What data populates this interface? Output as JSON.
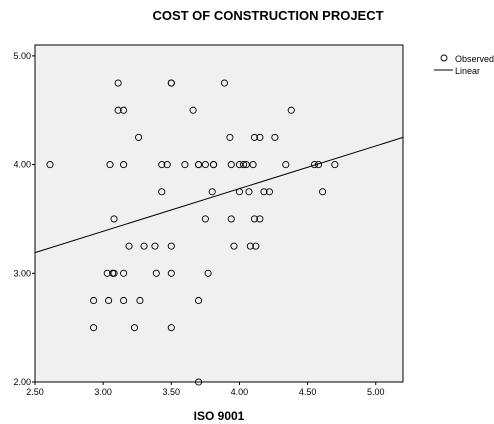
{
  "chart_data": {
    "type": "scatter",
    "title": "COST OF CONSTRUCTION PROJECT",
    "xlabel": "ISO 9001",
    "ylabel": "",
    "xlim": [
      2.5,
      5.2
    ],
    "ylim": [
      2.0,
      5.1
    ],
    "x_ticks": [
      "2.50",
      "3.00",
      "3.50",
      "4.00",
      "4.50",
      "5.00"
    ],
    "y_ticks": [
      "2.00",
      "3.00",
      "4.00",
      "5.00"
    ],
    "grid": false,
    "legend_position": "top-right",
    "legend": {
      "observed_label": "Observed",
      "linear_label": "Linear"
    },
    "series": [
      {
        "name": "Observed",
        "kind": "points",
        "points": [
          [
            2.61,
            4.0
          ],
          [
            2.93,
            2.75
          ],
          [
            2.93,
            2.5
          ],
          [
            3.03,
            3.0
          ],
          [
            3.04,
            2.75
          ],
          [
            3.05,
            4.0
          ],
          [
            3.07,
            3.0
          ],
          [
            3.08,
            3.0
          ],
          [
            3.08,
            3.5
          ],
          [
            3.11,
            4.75
          ],
          [
            3.11,
            4.5
          ],
          [
            3.15,
            4.5
          ],
          [
            3.15,
            4.0
          ],
          [
            3.15,
            3.0
          ],
          [
            3.15,
            2.75
          ],
          [
            3.19,
            3.25
          ],
          [
            3.23,
            2.5
          ],
          [
            3.26,
            4.25
          ],
          [
            3.27,
            2.75
          ],
          [
            3.3,
            3.25
          ],
          [
            3.38,
            3.25
          ],
          [
            3.39,
            3.0
          ],
          [
            3.43,
            3.75
          ],
          [
            3.43,
            4.0
          ],
          [
            3.47,
            4.0
          ],
          [
            3.5,
            4.75
          ],
          [
            3.5,
            4.75
          ],
          [
            3.5,
            3.25
          ],
          [
            3.5,
            3.0
          ],
          [
            3.5,
            2.5
          ],
          [
            3.6,
            4.0
          ],
          [
            3.66,
            4.5
          ],
          [
            3.7,
            4.0
          ],
          [
            3.7,
            4.0
          ],
          [
            3.7,
            2.75
          ],
          [
            3.7,
            2.0
          ],
          [
            3.75,
            3.5
          ],
          [
            3.75,
            4.0
          ],
          [
            3.77,
            3.0
          ],
          [
            3.8,
            3.75
          ],
          [
            3.81,
            4.0
          ],
          [
            3.81,
            4.0
          ],
          [
            3.89,
            4.75
          ],
          [
            3.93,
            4.25
          ],
          [
            3.94,
            3.5
          ],
          [
            3.94,
            4.0
          ],
          [
            3.96,
            3.25
          ],
          [
            4.0,
            4.0
          ],
          [
            4.0,
            3.75
          ],
          [
            4.03,
            4.0
          ],
          [
            4.05,
            4.0
          ],
          [
            4.07,
            3.75
          ],
          [
            4.08,
            3.25
          ],
          [
            4.1,
            4.0
          ],
          [
            4.11,
            4.25
          ],
          [
            4.11,
            3.5
          ],
          [
            4.12,
            3.25
          ],
          [
            4.15,
            4.25
          ],
          [
            4.15,
            3.5
          ],
          [
            4.18,
            3.75
          ],
          [
            4.22,
            3.75
          ],
          [
            4.26,
            4.25
          ],
          [
            4.34,
            4.0
          ],
          [
            4.38,
            4.5
          ],
          [
            4.55,
            4.0
          ],
          [
            4.58,
            4.0
          ],
          [
            4.61,
            3.75
          ],
          [
            4.7,
            4.0
          ]
        ]
      },
      {
        "name": "Linear",
        "kind": "line",
        "points": [
          [
            2.5,
            3.19
          ],
          [
            5.2,
            4.25
          ]
        ]
      }
    ]
  },
  "colors": {
    "plot_background": "#f0f0f0",
    "marker_stroke": "#000000",
    "line": "#000000"
  }
}
